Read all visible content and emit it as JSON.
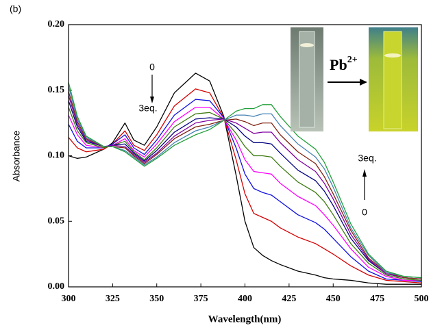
{
  "chart_data": {
    "type": "line",
    "panel_label": "(b)",
    "xlabel": "Wavelength(nm)",
    "ylabel": "Absorbance",
    "xlim": [
      300,
      500
    ],
    "ylim": [
      0,
      0.2
    ],
    "xticks": [
      300,
      325,
      350,
      375,
      400,
      425,
      450,
      475,
      500
    ],
    "yticks": [
      {
        "value": 0,
        "label": "0.00"
      },
      {
        "value": 0.05,
        "label": "0.05"
      },
      {
        "value": 0.1,
        "label": "0.10"
      },
      {
        "value": 0.15,
        "label": "0.15"
      },
      {
        "value": 0.2,
        "label": "0.20"
      }
    ],
    "annotations": {
      "left_start": "0",
      "left_end": "3eq.",
      "right_end": "3eq.",
      "right_start": "0",
      "ion": "Pb",
      "ion_charge": "2+"
    },
    "x": [
      300,
      305,
      310,
      320,
      325,
      332,
      337,
      343,
      350,
      360,
      372,
      380,
      388,
      395,
      400,
      405,
      410,
      415,
      420,
      430,
      440,
      445,
      450,
      460,
      470,
      480,
      490,
      500
    ],
    "series": [
      {
        "color": "#000000",
        "values": [
          0.1,
          0.098,
          0.099,
          0.105,
          0.11,
          0.125,
          0.112,
          0.108,
          0.122,
          0.148,
          0.163,
          0.157,
          0.13,
          0.085,
          0.05,
          0.03,
          0.024,
          0.02,
          0.017,
          0.012,
          0.009,
          0.007,
          0.006,
          0.005,
          0.003,
          0.002,
          0.002,
          0.002
        ]
      },
      {
        "color": "#d40000",
        "values": [
          0.114,
          0.106,
          0.103,
          0.105,
          0.109,
          0.119,
          0.108,
          0.104,
          0.116,
          0.138,
          0.151,
          0.148,
          0.129,
          0.097,
          0.071,
          0.056,
          0.053,
          0.05,
          0.045,
          0.038,
          0.033,
          0.029,
          0.025,
          0.016,
          0.009,
          0.005,
          0.004,
          0.003
        ]
      },
      {
        "color": "#1010e0",
        "values": [
          0.124,
          0.111,
          0.106,
          0.106,
          0.109,
          0.116,
          0.106,
          0.101,
          0.112,
          0.131,
          0.143,
          0.142,
          0.129,
          0.106,
          0.086,
          0.075,
          0.072,
          0.07,
          0.065,
          0.055,
          0.049,
          0.044,
          0.037,
          0.023,
          0.012,
          0.006,
          0.005,
          0.004
        ]
      },
      {
        "color": "#ff00ff",
        "values": [
          0.131,
          0.116,
          0.108,
          0.106,
          0.108,
          0.113,
          0.104,
          0.099,
          0.109,
          0.126,
          0.137,
          0.137,
          0.128,
          0.112,
          0.097,
          0.088,
          0.087,
          0.086,
          0.079,
          0.069,
          0.062,
          0.055,
          0.047,
          0.029,
          0.015,
          0.008,
          0.005,
          0.005
        ]
      },
      {
        "color": "#3d7a10",
        "values": [
          0.137,
          0.119,
          0.11,
          0.106,
          0.108,
          0.111,
          0.103,
          0.097,
          0.106,
          0.122,
          0.132,
          0.133,
          0.128,
          0.117,
          0.107,
          0.1,
          0.1,
          0.099,
          0.092,
          0.08,
          0.072,
          0.065,
          0.055,
          0.033,
          0.018,
          0.009,
          0.006,
          0.005
        ]
      },
      {
        "color": "#000080",
        "values": [
          0.142,
          0.122,
          0.111,
          0.107,
          0.108,
          0.109,
          0.102,
          0.096,
          0.104,
          0.118,
          0.128,
          0.129,
          0.128,
          0.122,
          0.115,
          0.11,
          0.11,
          0.109,
          0.102,
          0.089,
          0.081,
          0.073,
          0.062,
          0.037,
          0.02,
          0.01,
          0.007,
          0.006
        ]
      },
      {
        "color": "#8000a0",
        "values": [
          0.146,
          0.124,
          0.112,
          0.107,
          0.108,
          0.107,
          0.101,
          0.095,
          0.102,
          0.115,
          0.125,
          0.127,
          0.128,
          0.125,
          0.121,
          0.117,
          0.118,
          0.118,
          0.11,
          0.097,
          0.088,
          0.079,
          0.067,
          0.04,
          0.021,
          0.01,
          0.007,
          0.006
        ]
      },
      {
        "color": "#802010",
        "values": [
          0.149,
          0.126,
          0.113,
          0.107,
          0.107,
          0.106,
          0.1,
          0.094,
          0.101,
          0.113,
          0.122,
          0.124,
          0.127,
          0.128,
          0.126,
          0.123,
          0.125,
          0.125,
          0.116,
          0.103,
          0.094,
          0.084,
          0.071,
          0.043,
          0.022,
          0.011,
          0.007,
          0.006
        ]
      },
      {
        "color": "#4682b4",
        "values": [
          0.153,
          0.128,
          0.114,
          0.107,
          0.107,
          0.104,
          0.099,
          0.093,
          0.099,
          0.11,
          0.119,
          0.122,
          0.127,
          0.131,
          0.131,
          0.13,
          0.132,
          0.132,
          0.123,
          0.109,
          0.099,
          0.09,
          0.076,
          0.045,
          0.024,
          0.011,
          0.008,
          0.007
        ]
      },
      {
        "color": "#22a03a",
        "values": [
          0.156,
          0.13,
          0.115,
          0.107,
          0.107,
          0.103,
          0.098,
          0.092,
          0.098,
          0.108,
          0.116,
          0.12,
          0.127,
          0.134,
          0.136,
          0.136,
          0.139,
          0.139,
          0.13,
          0.115,
          0.105,
          0.095,
          0.08,
          0.048,
          0.025,
          0.012,
          0.008,
          0.007
        ]
      }
    ]
  }
}
